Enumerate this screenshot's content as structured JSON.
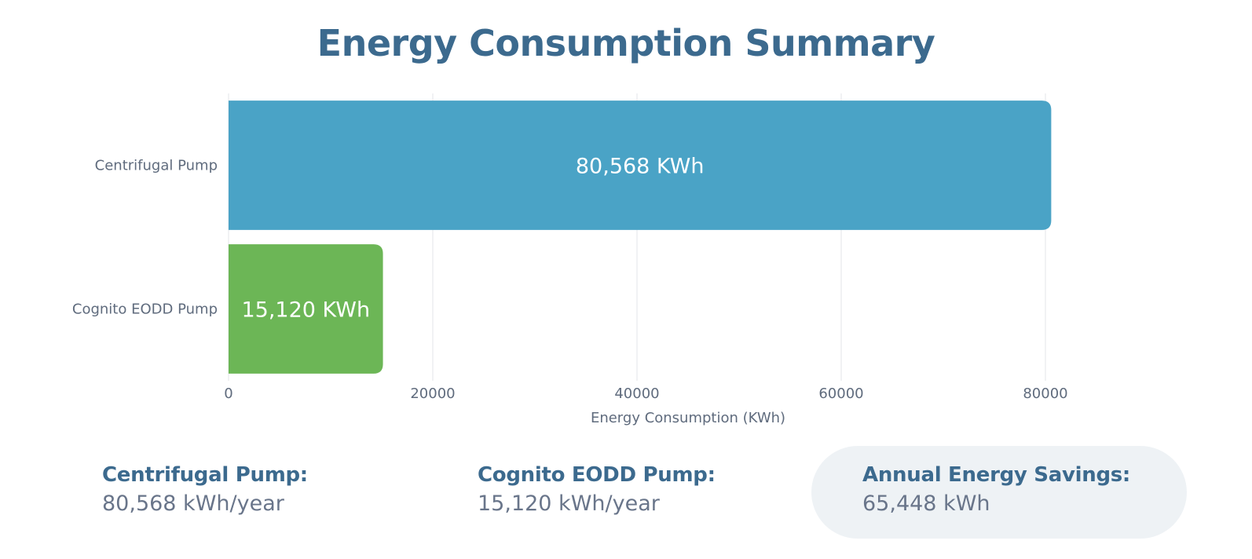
{
  "title": "Energy Consumption Summary",
  "chart_data": {
    "type": "bar",
    "orientation": "horizontal",
    "categories": [
      "Centrifugal Pump",
      "Cognito EODD Pump"
    ],
    "values": [
      80568,
      15120
    ],
    "data_labels": [
      "80,568 KWh",
      "15,120 KWh"
    ],
    "colors": [
      "#4aa3c6",
      "#6cb656"
    ],
    "xlabel": "Energy Consumption (KWh)",
    "ylabel": "",
    "xlim": [
      0,
      80000
    ],
    "xticks": [
      0,
      20000,
      40000,
      60000,
      80000
    ],
    "grid": true
  },
  "summary": {
    "centrifugal": {
      "label": "Centrifugal Pump:",
      "value": "80,568 kWh/year"
    },
    "cognito": {
      "label": "Cognito EODD Pump:",
      "value": "15,120 kWh/year"
    },
    "savings": {
      "label": "Annual Energy Savings:",
      "value": "65,448 kWh"
    }
  }
}
